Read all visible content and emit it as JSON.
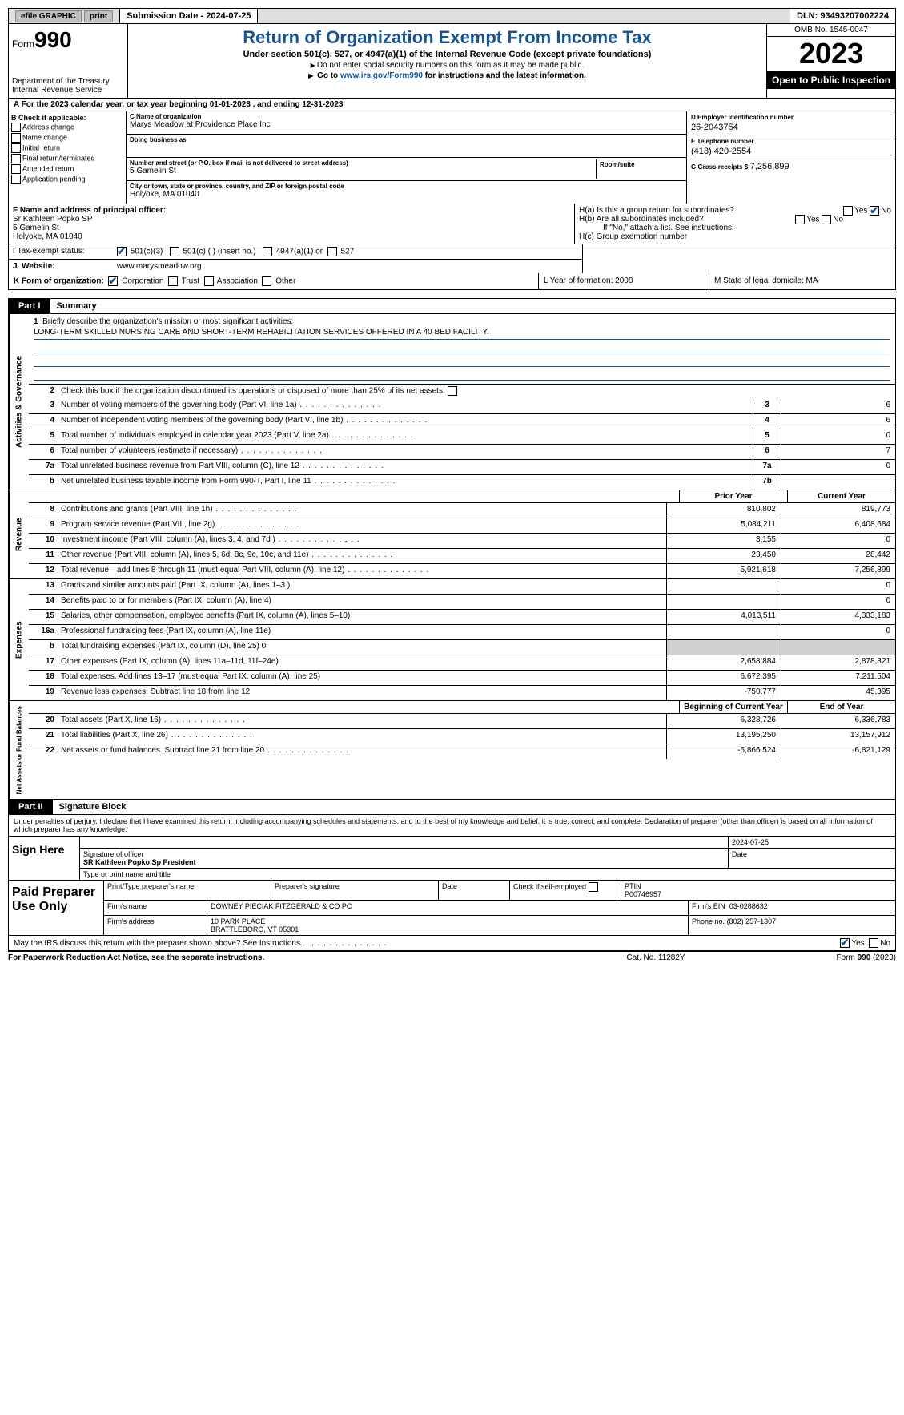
{
  "topbar": {
    "efile": "efile GRAPHIC",
    "print": "print",
    "submission": "Submission Date - 2024-07-25",
    "dln": "DLN: 93493207002224"
  },
  "header": {
    "form_label": "Form",
    "form_num": "990",
    "dept": "Department of the Treasury Internal Revenue Service",
    "title": "Return of Organization Exempt From Income Tax",
    "sub": "Under section 501(c), 527, or 4947(a)(1) of the Internal Revenue Code (except private foundations)",
    "sub2": "Do not enter social security numbers on this form as it may be made public.",
    "link_prefix": "Go to ",
    "link": "www.irs.gov/Form990",
    "link_suffix": " for instructions and the latest information.",
    "omb": "OMB No. 1545-0047",
    "year": "2023",
    "open": "Open to Public Inspection"
  },
  "period": "For the 2023 calendar year, or tax year beginning 01-01-2023   , and ending 12-31-2023",
  "box_b": {
    "label": "B Check if applicable:",
    "opts": [
      "Address change",
      "Name change",
      "Initial return",
      "Final return/terminated",
      "Amended return",
      "Application pending"
    ]
  },
  "box_c": {
    "name_label": "C Name of organization",
    "name": "Marys Meadow at Providence Place Inc",
    "dba_label": "Doing business as",
    "dba": "",
    "street_label": "Number and street (or P.O. box if mail is not delivered to street address)",
    "street": "5 Gamelin St",
    "room_label": "Room/suite",
    "city_label": "City or town, state or province, country, and ZIP or foreign postal code",
    "city": "Holyoke, MA  01040"
  },
  "box_d": {
    "ein_label": "D Employer identification number",
    "ein": "26-2043754",
    "phone_label": "E Telephone number",
    "phone": "(413) 420-2554",
    "gross_label": "G Gross receipts $",
    "gross": "7,256,899"
  },
  "box_f": {
    "label": "F  Name and address of principal officer:",
    "name": "Sr Kathleen Popko SP",
    "street": "5 Gamelin St",
    "city": "Holyoke, MA  01040"
  },
  "box_h": {
    "ha": "H(a)  Is this a group return for subordinates?",
    "hb": "H(b)  Are all subordinates included?",
    "hb_note": "If \"No,\" attach a list. See instructions.",
    "hc": "H(c)  Group exemption number",
    "yes": "Yes",
    "no": "No"
  },
  "tax_exempt": {
    "label": "Tax-exempt status:",
    "c3": "501(c)(3)",
    "c_insert": "501(c) (   ) (insert no.)",
    "a4947": "4947(a)(1) or",
    "s527": "527"
  },
  "website": {
    "label": "Website:",
    "value": "www.marysmeadow.org"
  },
  "box_k": {
    "label": "K Form of organization:",
    "corp": "Corporation",
    "trust": "Trust",
    "assoc": "Association",
    "other": "Other"
  },
  "box_l": "L Year of formation: 2008",
  "box_m": "M State of legal domicile: MA",
  "part1": {
    "label": "Part I",
    "title": "Summary"
  },
  "mission": {
    "q": "Briefly describe the organization's mission or most significant activities:",
    "a": "LONG-TERM SKILLED NURSING CARE AND SHORT-TERM REHABILITATION SERVICES OFFERED IN A 40 BED FACILITY."
  },
  "governance": {
    "label": "Activities & Governance",
    "l2": "Check this box      if the organization discontinued its operations or disposed of more than 25% of its net assets.",
    "rows": [
      {
        "n": "3",
        "d": "Number of voting members of the governing body (Part VI, line 1a)",
        "box": "3",
        "v": "6"
      },
      {
        "n": "4",
        "d": "Number of independent voting members of the governing body (Part VI, line 1b)",
        "box": "4",
        "v": "6"
      },
      {
        "n": "5",
        "d": "Total number of individuals employed in calendar year 2023 (Part V, line 2a)",
        "box": "5",
        "v": "0"
      },
      {
        "n": "6",
        "d": "Total number of volunteers (estimate if necessary)",
        "box": "6",
        "v": "7"
      },
      {
        "n": "7a",
        "d": "Total unrelated business revenue from Part VIII, column (C), line 12",
        "box": "7a",
        "v": "0"
      },
      {
        "n": "b",
        "d": "Net unrelated business taxable income from Form 990-T, Part I, line 11",
        "box": "7b",
        "v": ""
      }
    ]
  },
  "cols": {
    "prior": "Prior Year",
    "current": "Current Year",
    "begin": "Beginning of Current Year",
    "end": "End of Year"
  },
  "revenue": {
    "label": "Revenue",
    "rows": [
      {
        "n": "8",
        "d": "Contributions and grants (Part VIII, line 1h)",
        "p": "810,802",
        "c": "819,773"
      },
      {
        "n": "9",
        "d": "Program service revenue (Part VIII, line 2g)",
        "p": "5,084,211",
        "c": "6,408,684"
      },
      {
        "n": "10",
        "d": "Investment income (Part VIII, column (A), lines 3, 4, and 7d )",
        "p": "3,155",
        "c": "0"
      },
      {
        "n": "11",
        "d": "Other revenue (Part VIII, column (A), lines 5, 6d, 8c, 9c, 10c, and 11e)",
        "p": "23,450",
        "c": "28,442"
      },
      {
        "n": "12",
        "d": "Total revenue—add lines 8 through 11 (must equal Part VIII, column (A), line 12)",
        "p": "5,921,618",
        "c": "7,256,899"
      }
    ]
  },
  "expenses": {
    "label": "Expenses",
    "rows": [
      {
        "n": "13",
        "d": "Grants and similar amounts paid (Part IX, column (A), lines 1–3 )",
        "p": "",
        "c": "0"
      },
      {
        "n": "14",
        "d": "Benefits paid to or for members (Part IX, column (A), line 4)",
        "p": "",
        "c": "0"
      },
      {
        "n": "15",
        "d": "Salaries, other compensation, employee benefits (Part IX, column (A), lines 5–10)",
        "p": "4,013,511",
        "c": "4,333,183"
      },
      {
        "n": "16a",
        "d": "Professional fundraising fees (Part IX, column (A), line 11e)",
        "p": "",
        "c": "0"
      },
      {
        "n": "b",
        "d": "Total fundraising expenses (Part IX, column (D), line 25) 0",
        "p": "shaded",
        "c": "shaded"
      },
      {
        "n": "17",
        "d": "Other expenses (Part IX, column (A), lines 11a–11d, 11f–24e)",
        "p": "2,658,884",
        "c": "2,878,321"
      },
      {
        "n": "18",
        "d": "Total expenses. Add lines 13–17 (must equal Part IX, column (A), line 25)",
        "p": "6,672,395",
        "c": "7,211,504"
      },
      {
        "n": "19",
        "d": "Revenue less expenses. Subtract line 18 from line 12",
        "p": "-750,777",
        "c": "45,395"
      }
    ]
  },
  "netassets": {
    "label": "Net Assets or Fund Balances",
    "rows": [
      {
        "n": "20",
        "d": "Total assets (Part X, line 16)",
        "p": "6,328,726",
        "c": "6,336,783"
      },
      {
        "n": "21",
        "d": "Total liabilities (Part X, line 26)",
        "p": "13,195,250",
        "c": "13,157,912"
      },
      {
        "n": "22",
        "d": "Net assets or fund balances. Subtract line 21 from line 20",
        "p": "-6,866,524",
        "c": "-6,821,129"
      }
    ]
  },
  "part2": {
    "label": "Part II",
    "title": "Signature Block"
  },
  "sig_text": "Under penalties of perjury, I declare that I have examined this return, including accompanying schedules and statements, and to the best of my knowledge and belief, it is true, correct, and complete. Declaration of preparer (other than officer) is based on all information of which preparer has any knowledge.",
  "sign_here": {
    "label": "Sign Here",
    "sig_officer": "Signature of officer",
    "officer": "SR Kathleen Popko Sp President",
    "type_title": "Type or print name and title",
    "date_label": "Date",
    "date": "2024-07-25"
  },
  "paid": {
    "label": "Paid Preparer Use Only",
    "name_label": "Print/Type preparer's name",
    "sig_label": "Preparer's signature",
    "date_label": "Date",
    "check_label": "Check      if self-employed",
    "ptin_label": "PTIN",
    "ptin": "P00746957",
    "firm_name_label": "Firm's name",
    "firm_name": "DOWNEY PIECIAK FITZGERALD & CO PC",
    "firm_ein_label": "Firm's EIN",
    "firm_ein": "03-0288632",
    "firm_addr_label": "Firm's address",
    "firm_addr1": "10 PARK PLACE",
    "firm_addr2": "BRATTLEBORO, VT  05301",
    "phone_label": "Phone no.",
    "phone": "(802) 257-1307"
  },
  "discuss": {
    "q": "May the IRS discuss this return with the preparer shown above? See Instructions.",
    "yes": "Yes",
    "no": "No"
  },
  "footer": {
    "l": "For Paperwork Reduction Act Notice, see the separate instructions.",
    "c": "Cat. No. 11282Y",
    "r": "Form 990 (2023)"
  }
}
